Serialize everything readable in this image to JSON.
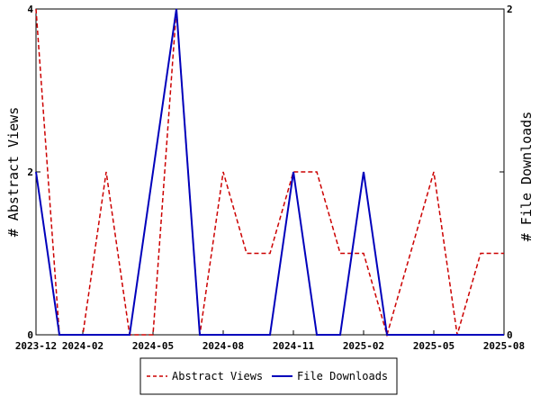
{
  "chart_data": {
    "type": "line",
    "x": [
      "2023-12",
      "2024-01",
      "2024-02",
      "2024-03",
      "2024-04",
      "2024-05",
      "2024-06",
      "2024-07",
      "2024-08",
      "2024-09",
      "2024-10",
      "2024-11",
      "2024-12",
      "2025-01",
      "2025-02",
      "2025-03",
      "2025-04",
      "2025-05",
      "2025-06",
      "2025-07",
      "2025-08"
    ],
    "series": [
      {
        "name": "Abstract Views",
        "axis": "left",
        "color": "#cc0000",
        "style": "dashed",
        "values": [
          4,
          0,
          0,
          2,
          0,
          0,
          4,
          0,
          2,
          1,
          1,
          2,
          2,
          1,
          1,
          0,
          1,
          2,
          0,
          1,
          1
        ]
      },
      {
        "name": "File Downloads",
        "axis": "right",
        "color": "#0000bb",
        "style": "solid",
        "values": [
          1,
          0,
          0,
          0,
          0,
          1,
          2,
          0,
          0,
          0,
          0,
          1,
          0,
          0,
          1,
          0,
          0,
          0,
          0,
          0,
          0
        ]
      }
    ],
    "x_tick_labels": [
      "2023-12",
      "2024-02",
      "2024-05",
      "2024-08",
      "2024-11",
      "2025-02",
      "2025-05",
      "2025-08"
    ],
    "x_tick_indices": [
      0,
      2,
      5,
      8,
      11,
      14,
      17,
      20
    ],
    "y_left": {
      "label": "# Abstract Views",
      "ylim": [
        0,
        4
      ],
      "ticks": [
        "0",
        "2",
        "4"
      ]
    },
    "y_right": {
      "label": "# File Downloads",
      "ylim": [
        0,
        2
      ],
      "ticks": [
        "0",
        "1",
        "2"
      ]
    },
    "legend": {
      "position": "bottom",
      "entries": [
        "Abstract Views",
        "File Downloads"
      ]
    },
    "grid": false
  }
}
